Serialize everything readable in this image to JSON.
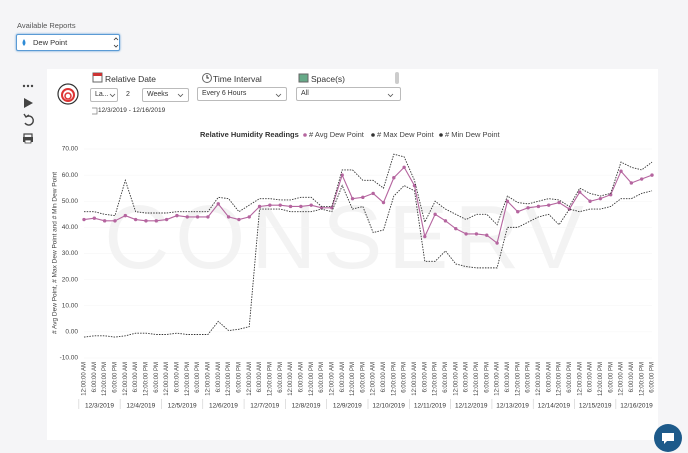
{
  "ui": {
    "reports_label": "Available Reports",
    "report_select": "Dew Point",
    "relative_date_label": "Relative Date",
    "relative_mode": "La...",
    "relative_count": "2",
    "relative_unit": "Weeks",
    "date_range": "12/3/2019 - 12/16/2019",
    "time_interval_label": "Time Interval",
    "time_interval": "Every 6 Hours",
    "spaces_label": "Space(s)",
    "spaces": "All"
  },
  "chart_data": {
    "type": "line",
    "title": "Relative Humidity Readings",
    "watermark": "CONSERV",
    "y_label": "# Avg Dew Point, # Max Dew Point and # Min Dew Point",
    "ylim": [
      -10,
      70
    ],
    "yticks": [
      {
        "value": -10,
        "label": "-10.00"
      },
      {
        "value": 0,
        "label": "0.00"
      },
      {
        "value": 10,
        "label": "10.00"
      },
      {
        "value": 20,
        "label": "20.00"
      },
      {
        "value": 30,
        "label": "30.00"
      },
      {
        "value": 40,
        "label": "40.00"
      },
      {
        "value": 50,
        "label": "50.00"
      },
      {
        "value": 60,
        "label": "60.00"
      },
      {
        "value": 70,
        "label": "70.00"
      }
    ],
    "grid": true,
    "categories": [
      "12:00:00 AM",
      "6:00:00 AM",
      "12:00:00 PM",
      "6:00:00 PM",
      "12:00:00 AM",
      "6:00:00 AM",
      "12:00:00 PM",
      "6:00:00 PM",
      "12:00:00 AM",
      "6:00:00 AM",
      "12:00:00 PM",
      "6:00:00 PM",
      "12:00:00 AM",
      "6:00:00 AM",
      "12:00:00 PM",
      "6:00:00 PM",
      "12:00:00 AM",
      "6:00:00 AM",
      "12:00:00 PM",
      "6:00:00 PM",
      "12:00:00 AM",
      "6:00:00 AM",
      "12:00:00 PM",
      "6:00:00 PM",
      "12:00:00 AM",
      "6:00:00 AM",
      "12:00:00 PM",
      "6:00:00 PM",
      "12:00:00 AM",
      "6:00:00 AM",
      "12:00:00 PM",
      "6:00:00 PM",
      "12:00:00 AM",
      "6:00:00 AM",
      "12:00:00 PM",
      "6:00:00 PM",
      "12:00:00 AM",
      "6:00:00 AM",
      "12:00:00 PM",
      "6:00:00 PM",
      "12:00:00 AM",
      "6:00:00 AM",
      "12:00:00 PM",
      "6:00:00 PM",
      "12:00:00 AM",
      "6:00:00 AM",
      "12:00:00 PM",
      "6:00:00 PM",
      "12:00:00 AM",
      "6:00:00 AM",
      "12:00:00 PM",
      "6:00:00 PM",
      "12:00:00 AM",
      "6:00:00 AM",
      "12:00:00 PM",
      "6:00:00 PM"
    ],
    "dates": [
      "12/3/2019",
      "12/4/2019",
      "12/5/2019",
      "12/6/2019",
      "12/7/2019",
      "12/8/2019",
      "12/9/2019",
      "12/10/2019",
      "12/11/2019",
      "12/12/2019",
      "12/13/2019",
      "12/14/2019",
      "12/15/2019",
      "12/16/2019"
    ],
    "series": [
      {
        "name": "# Avg Dew Point",
        "color": "#b5659f",
        "style": "solid",
        "markers": true,
        "values": [
          43,
          43.5,
          42.5,
          42.5,
          44.5,
          43,
          42.5,
          42.5,
          43,
          44.5,
          44,
          44,
          44,
          49,
          44,
          43,
          44,
          48,
          48.5,
          48.5,
          48,
          48,
          48.5,
          47.5,
          47.5,
          60,
          51,
          51.5,
          53,
          49.5,
          59,
          63,
          56,
          36.5,
          45,
          42.5,
          39.5,
          37.5,
          37.5,
          37,
          34,
          50,
          46,
          47.5,
          48,
          48.5,
          49.5,
          47,
          53.5,
          50,
          51,
          52.5,
          61.5,
          57,
          58.5,
          60
        ]
      },
      {
        "name": "# Max Dew Point",
        "color": "#333333",
        "style": "dotted",
        "markers": false,
        "values": [
          46,
          46,
          45,
          44.5,
          58,
          46,
          45.5,
          45.5,
          45.5,
          46,
          46,
          46,
          46,
          51.5,
          51,
          46,
          48.5,
          51,
          51,
          50.5,
          50.5,
          51.5,
          51.5,
          48,
          48,
          62,
          62,
          58,
          58,
          55,
          68,
          67,
          58,
          42,
          50,
          47,
          45,
          43,
          45,
          45,
          41,
          52,
          49.5,
          49,
          50,
          51,
          50.5,
          48,
          55,
          53,
          52,
          53,
          65,
          63,
          62,
          65
        ]
      },
      {
        "name": "# Min Dew Point",
        "color": "#333333",
        "style": "dotted",
        "markers": false,
        "values": [
          -2,
          -1.5,
          -1.5,
          -2,
          -1.5,
          -0.5,
          -0.5,
          -1,
          -1,
          -0.5,
          -1,
          -1,
          -1,
          4,
          0.5,
          1,
          2,
          47,
          47,
          47,
          46,
          46,
          46,
          47,
          46,
          56,
          47,
          48,
          38,
          39,
          52,
          56,
          54,
          27,
          27,
          31,
          26,
          25,
          24.5,
          24.5,
          24.5,
          40,
          40,
          42,
          44,
          45,
          41,
          47,
          46,
          47,
          47,
          48,
          51,
          51,
          53,
          54
        ]
      }
    ]
  }
}
